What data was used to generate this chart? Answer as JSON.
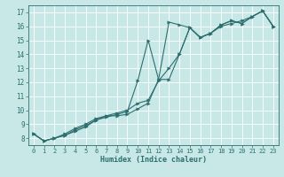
{
  "xlabel": "Humidex (Indice chaleur)",
  "bg_color": "#c8e8e8",
  "grid_color": "#ffffff",
  "line_color": "#2d6e6e",
  "xlim": [
    -0.5,
    23.5
  ],
  "ylim": [
    7.5,
    17.5
  ],
  "xticks": [
    0,
    1,
    2,
    3,
    4,
    5,
    6,
    7,
    8,
    9,
    10,
    11,
    12,
    13,
    14,
    15,
    16,
    17,
    18,
    19,
    20,
    21,
    22,
    23
  ],
  "yticks": [
    8,
    9,
    10,
    11,
    12,
    13,
    14,
    15,
    16,
    17
  ],
  "line1_x": [
    0,
    1,
    2,
    3,
    4,
    5,
    6,
    7,
    8,
    9,
    10,
    11,
    12,
    13,
    14,
    15,
    16,
    17,
    18,
    19,
    20,
    21,
    22,
    23
  ],
  "line1_y": [
    8.3,
    7.8,
    8.0,
    8.2,
    8.5,
    8.8,
    9.3,
    9.6,
    9.6,
    9.7,
    10.1,
    10.5,
    12.2,
    16.3,
    16.1,
    15.9,
    15.2,
    15.5,
    16.1,
    16.4,
    16.2,
    16.7,
    17.1,
    16.0
  ],
  "line2_x": [
    0,
    1,
    2,
    3,
    4,
    5,
    6,
    7,
    8,
    9,
    10,
    11,
    12,
    13,
    14,
    15,
    16,
    17,
    18,
    19,
    20,
    21,
    22,
    23
  ],
  "line2_y": [
    8.3,
    7.8,
    8.0,
    8.2,
    8.6,
    8.9,
    9.3,
    9.5,
    9.7,
    9.9,
    12.1,
    15.0,
    12.2,
    12.2,
    14.0,
    15.9,
    15.2,
    15.5,
    16.1,
    16.4,
    16.2,
    16.7,
    17.1,
    16.0
  ],
  "line3_x": [
    0,
    1,
    2,
    3,
    4,
    5,
    6,
    7,
    8,
    9,
    10,
    11,
    12,
    13,
    14,
    15,
    16,
    17,
    18,
    19,
    20,
    21,
    22,
    23
  ],
  "line3_y": [
    8.3,
    7.8,
    8.0,
    8.3,
    8.7,
    9.0,
    9.4,
    9.6,
    9.8,
    10.0,
    10.5,
    10.7,
    12.1,
    13.0,
    14.0,
    15.9,
    15.2,
    15.5,
    16.0,
    16.2,
    16.4,
    16.7,
    17.1,
    16.0
  ],
  "marker": "4",
  "markersize": 2.5,
  "linewidth": 0.8,
  "tick_fontsize": 5.0,
  "xlabel_fontsize": 6.0
}
